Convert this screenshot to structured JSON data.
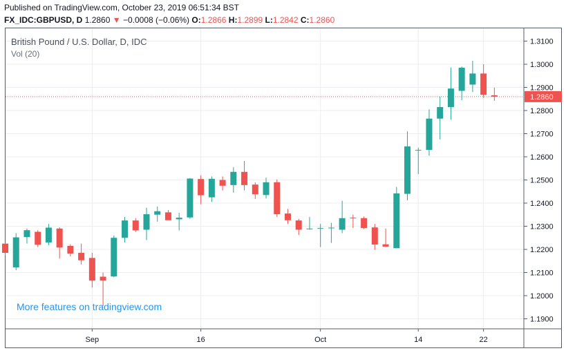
{
  "header": {
    "published": "Published on TradingView.com, October 23, 2019 06:51:34 BST",
    "symbol": "FX_IDC:GBPUSD, D",
    "last": "1.2860",
    "change_arrow": "▼",
    "change": "−0.0008 (−0.06%)",
    "open_label": "O:",
    "open": "1.2866",
    "high_label": "H:",
    "high": "1.2899",
    "low_label": "L:",
    "low": "1.2842",
    "close_label": "C:",
    "close": "1.2860"
  },
  "legend": {
    "title": "British Pound / U.S. Dollar, D, IDC",
    "volume": "Vol (20)"
  },
  "watermark": "More features on tradingview.com",
  "chart_data": {
    "type": "candlestick",
    "title": "British Pound / U.S. Dollar, D, IDC",
    "y_ticks": [
      "1.3100",
      "1.3000",
      "1.2900",
      "1.2800",
      "1.2700",
      "1.2600",
      "1.2500",
      "1.2400",
      "1.2300",
      "1.2200",
      "1.2100",
      "1.2000",
      "1.1900"
    ],
    "x_ticks": [
      "Sep",
      "16",
      "Oct",
      "14",
      "22"
    ],
    "ylim": [
      1.186,
      1.312
    ],
    "current_price_label": "1.2860",
    "current_price": 1.286,
    "up_color": "#26a69a",
    "down_color": "#ef5350",
    "grid": true,
    "candles": [
      {
        "o": 1.2225,
        "h": 1.2228,
        "l": 1.2175,
        "c": 1.2185
      },
      {
        "o": 1.2122,
        "h": 1.227,
        "l": 1.211,
        "c": 1.2252
      },
      {
        "o": 1.2253,
        "h": 1.229,
        "l": 1.2225,
        "c": 1.2283
      },
      {
        "o": 1.2276,
        "h": 1.2283,
        "l": 1.221,
        "c": 1.222
      },
      {
        "o": 1.223,
        "h": 1.231,
        "l": 1.2218,
        "c": 1.2294
      },
      {
        "o": 1.229,
        "h": 1.2295,
        "l": 1.216,
        "c": 1.2208
      },
      {
        "o": 1.2215,
        "h": 1.2222,
        "l": 1.217,
        "c": 1.2182
      },
      {
        "o": 1.2185,
        "h": 1.2225,
        "l": 1.2135,
        "c": 1.2153
      },
      {
        "o": 1.2163,
        "h": 1.2185,
        "l": 1.2035,
        "c": 1.2065
      },
      {
        "o": 1.2082,
        "h": 1.21,
        "l": 1.1955,
        "c": 1.2065
      },
      {
        "o": 1.2083,
        "h": 1.226,
        "l": 1.208,
        "c": 1.225
      },
      {
        "o": 1.225,
        "h": 1.234,
        "l": 1.223,
        "c": 1.2325
      },
      {
        "o": 1.2325,
        "h": 1.2335,
        "l": 1.2275,
        "c": 1.2282
      },
      {
        "o": 1.2285,
        "h": 1.238,
        "l": 1.224,
        "c": 1.2352
      },
      {
        "o": 1.235,
        "h": 1.2385,
        "l": 1.232,
        "c": 1.2365
      },
      {
        "o": 1.236,
        "h": 1.237,
        "l": 1.233,
        "c": 1.2326
      },
      {
        "o": 1.233,
        "h": 1.2358,
        "l": 1.2282,
        "c": 1.2337
      },
      {
        "o": 1.2338,
        "h": 1.2508,
        "l": 1.2332,
        "c": 1.2506
      },
      {
        "o": 1.2504,
        "h": 1.252,
        "l": 1.2395,
        "c": 1.2434
      },
      {
        "o": 1.2425,
        "h": 1.2515,
        "l": 1.2405,
        "c": 1.2505
      },
      {
        "o": 1.25,
        "h": 1.2515,
        "l": 1.2455,
        "c": 1.2475
      },
      {
        "o": 1.2478,
        "h": 1.2555,
        "l": 1.2445,
        "c": 1.2535
      },
      {
        "o": 1.2535,
        "h": 1.2582,
        "l": 1.2455,
        "c": 1.2478
      },
      {
        "o": 1.248,
        "h": 1.249,
        "l": 1.2418,
        "c": 1.2438
      },
      {
        "o": 1.2435,
        "h": 1.251,
        "l": 1.242,
        "c": 1.249
      },
      {
        "o": 1.249,
        "h": 1.2502,
        "l": 1.234,
        "c": 1.2352
      },
      {
        "o": 1.2355,
        "h": 1.2375,
        "l": 1.231,
        "c": 1.2326
      },
      {
        "o": 1.2325,
        "h": 1.2332,
        "l": 1.2262,
        "c": 1.2285
      },
      {
        "o": 1.2287,
        "h": 1.234,
        "l": 1.2285,
        "c": 1.229
      },
      {
        "o": 1.229,
        "h": 1.231,
        "l": 1.221,
        "c": 1.2292
      },
      {
        "o": 1.2292,
        "h": 1.2315,
        "l": 1.2228,
        "c": 1.2294
      },
      {
        "o": 1.2285,
        "h": 1.241,
        "l": 1.227,
        "c": 1.2335
      },
      {
        "o": 1.2337,
        "h": 1.235,
        "l": 1.2292,
        "c": 1.2334
      },
      {
        "o": 1.2335,
        "h": 1.2342,
        "l": 1.2288,
        "c": 1.2292
      },
      {
        "o": 1.2295,
        "h": 1.231,
        "l": 1.2198,
        "c": 1.2221
      },
      {
        "o": 1.2222,
        "h": 1.229,
        "l": 1.221,
        "c": 1.2212
      },
      {
        "o": 1.2205,
        "h": 1.247,
        "l": 1.2205,
        "c": 1.2442
      },
      {
        "o": 1.244,
        "h": 1.271,
        "l": 1.2412,
        "c": 1.2645
      },
      {
        "o": 1.263,
        "h": 1.264,
        "l": 1.2525,
        "c": 1.263
      },
      {
        "o": 1.263,
        "h": 1.2805,
        "l": 1.2605,
        "c": 1.2765
      },
      {
        "o": 1.2765,
        "h": 1.286,
        "l": 1.2675,
        "c": 1.2815
      },
      {
        "o": 1.2815,
        "h": 1.2985,
        "l": 1.276,
        "c": 1.2895
      },
      {
        "o": 1.2885,
        "h": 1.299,
        "l": 1.2845,
        "c": 1.2985
      },
      {
        "o": 1.2912,
        "h": 1.3015,
        "l": 1.288,
        "c": 1.296
      },
      {
        "o": 1.296,
        "h": 1.3,
        "l": 1.2855,
        "c": 1.2868
      },
      {
        "o": 1.2866,
        "h": 1.2899,
        "l": 1.2842,
        "c": 1.286
      }
    ]
  }
}
